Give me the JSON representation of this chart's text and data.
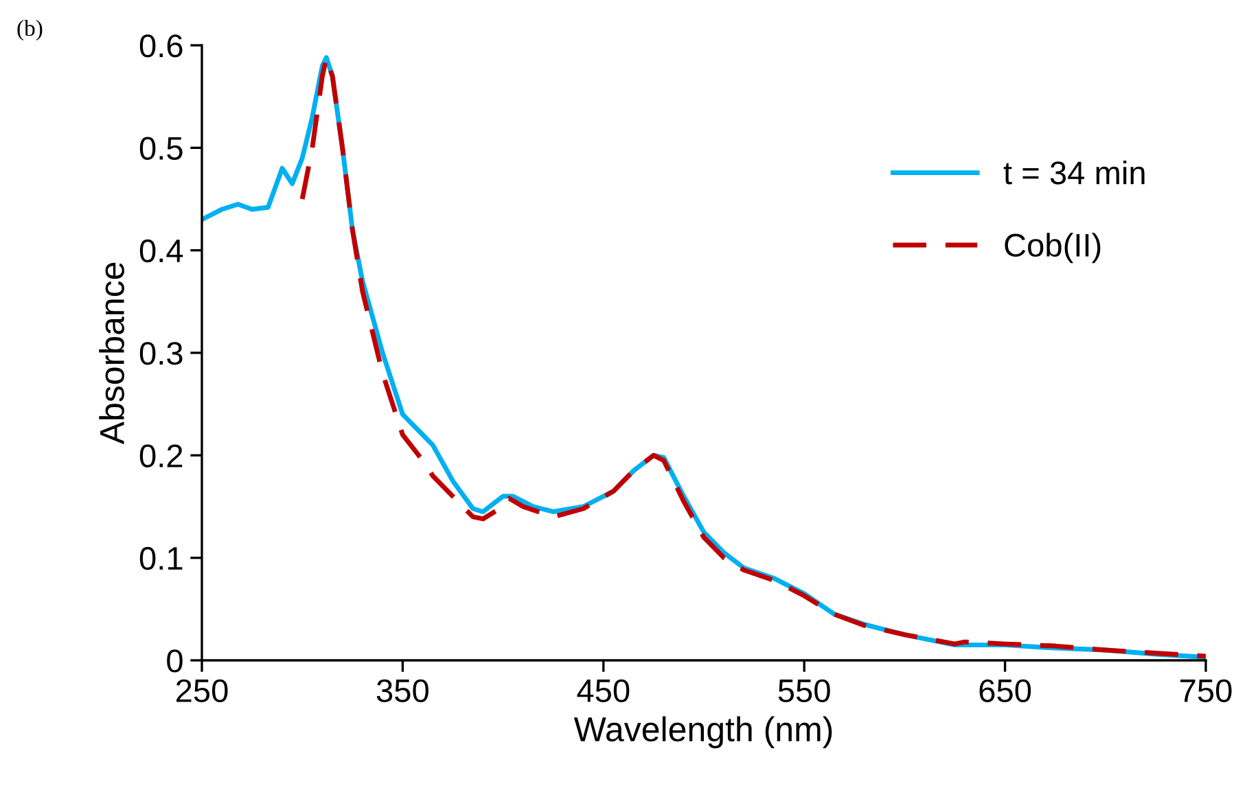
{
  "chart_data": {
    "type": "line",
    "xlabel": "Wavelength (nm)",
    "ylabel": "Absorbance",
    "annotations": [
      "(b)"
    ],
    "xlim": [
      250,
      750
    ],
    "xticks": [
      250,
      350,
      450,
      550,
      650,
      750
    ],
    "ylim": [
      0,
      0.6
    ],
    "yticks": [
      0,
      0.1,
      0.2,
      0.3,
      0.4,
      0.5,
      0.6
    ],
    "grid": false,
    "legend": "top right",
    "series": [
      {
        "name": "t = 34 min",
        "color": "#00b0f0",
        "line_style": "solid",
        "x": [
          250,
          260,
          268,
          275,
          283,
          290,
          295,
          300,
          305,
          310,
          312,
          315,
          320,
          325,
          330,
          340,
          350,
          360,
          365,
          375,
          385,
          390,
          400,
          405,
          415,
          425,
          440,
          455,
          465,
          475,
          480,
          490,
          500,
          510,
          520,
          535,
          550,
          565,
          580,
          600,
          625,
          650,
          675,
          700,
          725,
          750
        ],
        "values": [
          0.43,
          0.44,
          0.445,
          0.44,
          0.442,
          0.48,
          0.465,
          0.49,
          0.53,
          0.58,
          0.588,
          0.57,
          0.5,
          0.42,
          0.37,
          0.3,
          0.24,
          0.22,
          0.21,
          0.175,
          0.148,
          0.145,
          0.16,
          0.16,
          0.15,
          0.145,
          0.15,
          0.165,
          0.185,
          0.2,
          0.198,
          0.16,
          0.125,
          0.105,
          0.09,
          0.08,
          0.065,
          0.045,
          0.035,
          0.025,
          0.015,
          0.015,
          0.012,
          0.01,
          0.006,
          0.003
        ]
      },
      {
        "name": "Cob(II)",
        "color": "#c00000",
        "line_style": "dashed",
        "x": [
          300,
          305,
          310,
          312,
          315,
          320,
          325,
          330,
          340,
          350,
          360,
          365,
          375,
          385,
          390,
          400,
          403,
          410,
          425,
          440,
          455,
          465,
          475,
          480,
          490,
          500,
          510,
          520,
          535,
          550,
          565,
          580,
          600,
          625,
          630,
          650,
          675,
          700,
          725,
          750
        ],
        "values": [
          0.45,
          0.5,
          0.57,
          0.588,
          0.57,
          0.5,
          0.42,
          0.36,
          0.28,
          0.22,
          0.195,
          0.18,
          0.16,
          0.14,
          0.138,
          0.15,
          0.158,
          0.15,
          0.14,
          0.148,
          0.165,
          0.185,
          0.2,
          0.195,
          0.155,
          0.12,
          0.1,
          0.088,
          0.078,
          0.063,
          0.045,
          0.034,
          0.025,
          0.016,
          0.018,
          0.016,
          0.014,
          0.01,
          0.007,
          0.004
        ]
      }
    ]
  }
}
